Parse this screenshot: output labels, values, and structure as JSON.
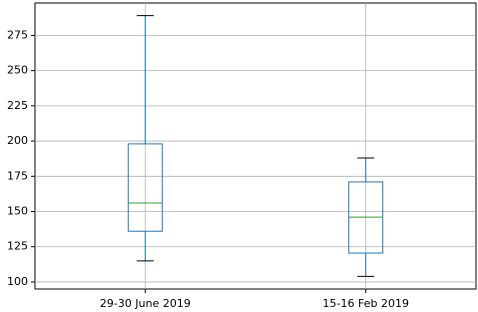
{
  "chart_data": {
    "type": "box",
    "categories": [
      "29-30 June 2019",
      "15-16 Feb 2019"
    ],
    "boxes": [
      {
        "whisker_low": 115,
        "q1": 136,
        "median": 156,
        "q3": 198,
        "whisker_high": 289
      },
      {
        "whisker_low": 104,
        "q1": 120.5,
        "median": 146,
        "q3": 171,
        "whisker_high": 188
      }
    ],
    "box_color": "#1f77b4",
    "median_color": "#2ca02c",
    "cap_color": "#000000",
    "ylim": [
      95,
      298
    ],
    "yticks": [
      100,
      125,
      150,
      175,
      200,
      225,
      250,
      275
    ],
    "grid": true
  }
}
